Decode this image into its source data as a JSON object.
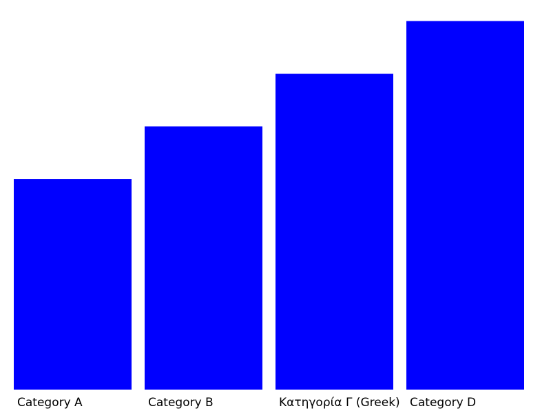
{
  "chart_data": {
    "type": "bar",
    "title": "",
    "xlabel": "",
    "ylabel": "",
    "categories": [
      "Category A",
      "Category B",
      "Κατηγορία Γ (Greek)",
      "Category D"
    ],
    "series": [
      {
        "values": [
          4,
          5,
          6,
          7
        ]
      }
    ],
    "ylim": [
      0,
      7.4
    ],
    "grid": false,
    "legend": "none",
    "colors": {
      "bar": "#0000ff",
      "text": "#000000",
      "background": "#ffffff"
    }
  }
}
